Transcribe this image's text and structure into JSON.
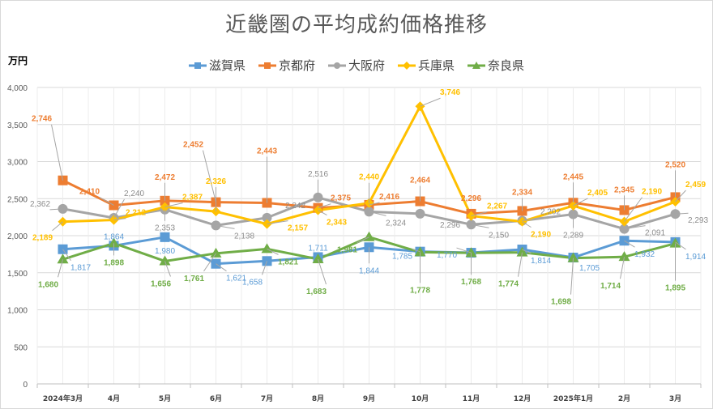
{
  "chart_data": {
    "type": "line",
    "title": "近畿圏の平均成約価格推移",
    "ylabel": "万円",
    "xlabel": "",
    "ylim": [
      0,
      4000
    ],
    "yticks": [
      0,
      500,
      1000,
      1500,
      2000,
      2500,
      3000,
      3500,
      4000
    ],
    "ytick_labels": [
      "0",
      "500",
      "1,000",
      "1,500",
      "2,000",
      "2,500",
      "3,000",
      "3,500",
      "4,000"
    ],
    "grid": true,
    "legend_position": "top-center",
    "categories": [
      "2024年3月",
      "4月",
      "5月",
      "6月",
      "7月",
      "8月",
      "9月",
      "10月",
      "11月",
      "12月",
      "2025年1月",
      "2月",
      "3月"
    ],
    "series": [
      {
        "name": "滋賀県",
        "color": "#5b9bd5",
        "marker": "square",
        "values": [
          1817,
          1864,
          1980,
          1621,
          1658,
          1711,
          1844,
          1785,
          1770,
          1814,
          1705,
          1932,
          1914
        ]
      },
      {
        "name": "京都府",
        "color": "#ed7d31",
        "marker": "square",
        "values": [
          2746,
          2410,
          2472,
          2452,
          2443,
          2375,
          2416,
          2464,
          2296,
          2334,
          2445,
          2345,
          2520
        ]
      },
      {
        "name": "大阪府",
        "color": "#a5a5a5",
        "marker": "circle",
        "values": [
          2362,
          2240,
          2353,
          2138,
          2242,
          2516,
          2324,
          2296,
          2150,
          2202,
          2289,
          2091,
          2293
        ]
      },
      {
        "name": "兵庫県",
        "color": "#ffc000",
        "marker": "diamond",
        "values": [
          2189,
          2212,
          2387,
          2326,
          2157,
          2343,
          2440,
          3746,
          2267,
          2190,
          2405,
          2190,
          2459
        ]
      },
      {
        "name": "奈良県",
        "color": "#70ad47",
        "marker": "triangle",
        "values": [
          1680,
          1898,
          1656,
          1761,
          1821,
          1683,
          1981,
          1778,
          1768,
          1774,
          1698,
          1714,
          1895
        ]
      }
    ]
  },
  "legend_labels": [
    "滋賀県",
    "京都府",
    "大阪府",
    "兵庫県",
    "奈良県"
  ]
}
